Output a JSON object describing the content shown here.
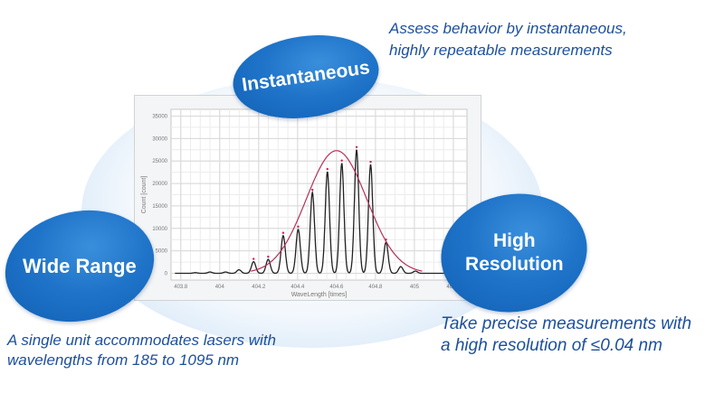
{
  "ovals": {
    "instantaneous": "Instantaneous",
    "wide_range": "Wide Range",
    "high_resolution_line1": "High",
    "high_resolution_line2": "Resolution"
  },
  "captions": {
    "instantaneous_line1": "Assess behavior by instantaneous,",
    "instantaneous_line2": "highly repeatable measurements",
    "wide_range_line1": "A single unit accommodates lasers with",
    "wide_range_line2": "wavelengths from 185 to 1095 nm",
    "high_resolution_line1": "Take precise measurements with",
    "high_resolution_line2": "a high resolution of ≤0.04 nm"
  },
  "colors": {
    "oval_blue": "#1f74c9",
    "caption_blue": "#1c4f9c",
    "fit_curve": "#b8305a",
    "spectrum": "#222222",
    "marker": "#d0205a"
  },
  "chart_data": {
    "type": "line",
    "xlabel": "WaveLength [times]",
    "ylabel": "Count [count]",
    "xlim": [
      403.75,
      405.27
    ],
    "ylim": [
      -1500,
      36500
    ],
    "x_ticks": [
      "403.8",
      "404",
      "404.2",
      "404.4",
      "404.6",
      "404.8",
      "405",
      "405.2"
    ],
    "y_ticks": [
      "0",
      "5000",
      "10000",
      "15000",
      "20000",
      "25000",
      "30000",
      "35000"
    ],
    "grid": true,
    "series": [
      {
        "kind": "spectrum-peaks",
        "peaks_x": [
          403.875,
          403.95,
          404.03,
          404.099,
          404.174,
          404.249,
          404.326,
          404.403,
          404.476,
          404.553,
          404.627,
          404.703,
          404.775,
          404.854,
          404.93,
          405.005
        ],
        "peaks_y": [
          150,
          300,
          300,
          800,
          2600,
          3100,
          8400,
          9800,
          18000,
          22600,
          24500,
          27500,
          24200,
          6900,
          1500,
          500
        ],
        "marked": [
          false,
          false,
          false,
          false,
          true,
          true,
          true,
          true,
          true,
          true,
          true,
          true,
          true,
          true,
          false,
          false
        ]
      },
      {
        "kind": "gaussian-fit",
        "center": 404.6,
        "amplitude": 27300,
        "sigma": 0.155,
        "range": [
          404.16,
          405.04
        ]
      }
    ]
  }
}
